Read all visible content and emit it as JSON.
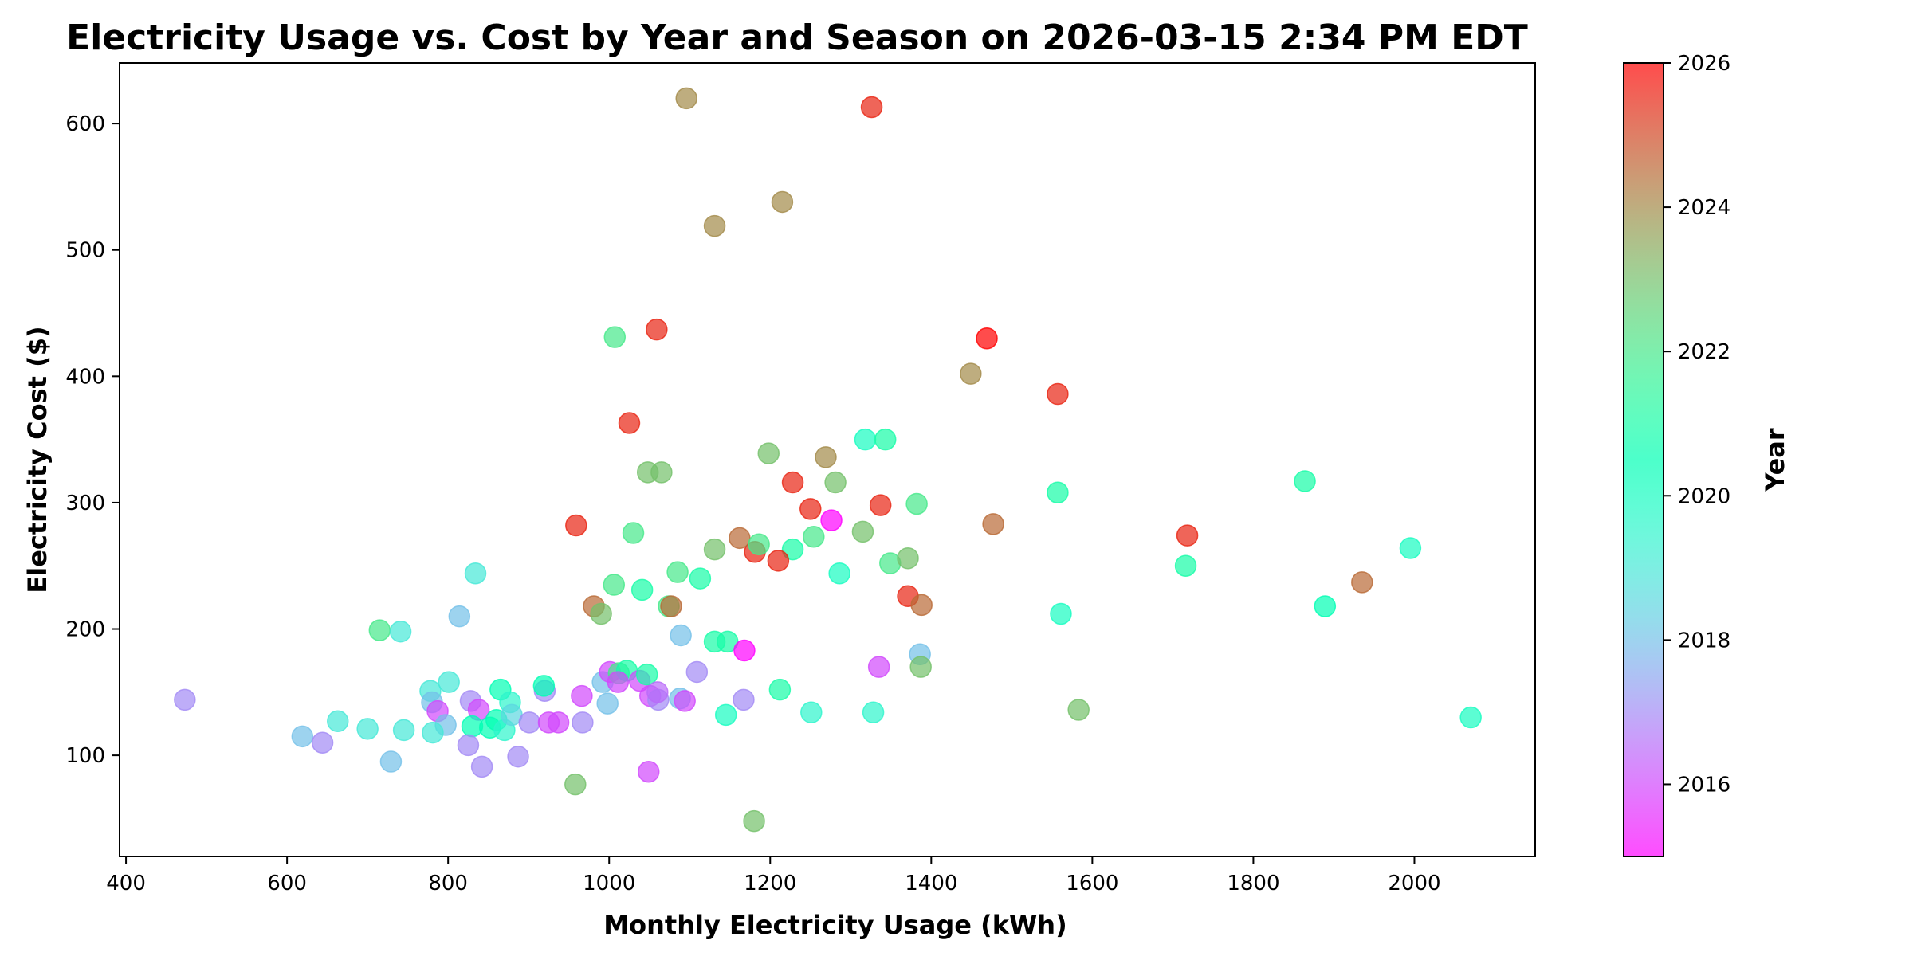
{
  "chart_data": {
    "type": "scatter",
    "title": "Electricity Usage vs. Cost by Year and Season on 2026-03-15 2:34 PM EDT",
    "xlabel": "Monthly Electricity Usage (kWh)",
    "ylabel": "Electricity Cost ($)",
    "xlim": [
      392,
      2150
    ],
    "ylim": [
      20,
      648
    ],
    "xticks": [
      400,
      600,
      800,
      1000,
      1200,
      1400,
      1600,
      1800,
      2000
    ],
    "yticks": [
      100,
      200,
      300,
      400,
      500,
      600
    ],
    "grid": false,
    "colorbar": {
      "label": "Year",
      "colormap": "rainbow",
      "range": [
        2015,
        2026
      ],
      "ticks": [
        2016,
        2018,
        2020,
        2022,
        2024,
        2026
      ]
    },
    "points": [
      {
        "x": 1096,
        "y": 620,
        "year": 2024
      },
      {
        "x": 1326,
        "y": 613,
        "year": 2025.5
      },
      {
        "x": 1215,
        "y": 538,
        "year": 2024
      },
      {
        "x": 1131,
        "y": 519,
        "year": 2024
      },
      {
        "x": 1007,
        "y": 431,
        "year": 2022
      },
      {
        "x": 1059,
        "y": 437,
        "year": 2025.5
      },
      {
        "x": 1469,
        "y": 430,
        "year": 2026
      },
      {
        "x": 1449,
        "y": 402,
        "year": 2024
      },
      {
        "x": 1557,
        "y": 386,
        "year": 2025.5
      },
      {
        "x": 1025,
        "y": 363,
        "year": 2025.5
      },
      {
        "x": 959,
        "y": 282,
        "year": 2025.5
      },
      {
        "x": 1030,
        "y": 276,
        "year": 2022
      },
      {
        "x": 1048,
        "y": 324,
        "year": 2023
      },
      {
        "x": 1065,
        "y": 324,
        "year": 2023
      },
      {
        "x": 1198,
        "y": 339,
        "year": 2023
      },
      {
        "x": 1269,
        "y": 336,
        "year": 2024
      },
      {
        "x": 1228,
        "y": 316,
        "year": 2025.5
      },
      {
        "x": 1281,
        "y": 316,
        "year": 2023
      },
      {
        "x": 1250,
        "y": 295,
        "year": 2025.5
      },
      {
        "x": 1276,
        "y": 286,
        "year": 2015
      },
      {
        "x": 1337,
        "y": 298,
        "year": 2025.5
      },
      {
        "x": 1382,
        "y": 299,
        "year": 2022
      },
      {
        "x": 1318,
        "y": 350,
        "year": 2020
      },
      {
        "x": 1343,
        "y": 350,
        "year": 2021
      },
      {
        "x": 1557,
        "y": 308,
        "year": 2021
      },
      {
        "x": 1477,
        "y": 283,
        "year": 2024.5
      },
      {
        "x": 1718,
        "y": 274,
        "year": 2025.5
      },
      {
        "x": 1716,
        "y": 250,
        "year": 2021
      },
      {
        "x": 1561,
        "y": 212,
        "year": 2020
      },
      {
        "x": 1315,
        "y": 277,
        "year": 2023
      },
      {
        "x": 1254,
        "y": 273,
        "year": 2022
      },
      {
        "x": 1228,
        "y": 263,
        "year": 2021
      },
      {
        "x": 1210,
        "y": 254,
        "year": 2025.5
      },
      {
        "x": 1181,
        "y": 261,
        "year": 2025.5
      },
      {
        "x": 1162,
        "y": 272,
        "year": 2024.5
      },
      {
        "x": 1186,
        "y": 267,
        "year": 2022
      },
      {
        "x": 1131,
        "y": 263,
        "year": 2023
      },
      {
        "x": 1085,
        "y": 245,
        "year": 2022
      },
      {
        "x": 1113,
        "y": 240,
        "year": 2021
      },
      {
        "x": 1006,
        "y": 235,
        "year": 2022
      },
      {
        "x": 1041,
        "y": 231,
        "year": 2021
      },
      {
        "x": 1286,
        "y": 244,
        "year": 2020
      },
      {
        "x": 1349,
        "y": 252,
        "year": 2022
      },
      {
        "x": 1371,
        "y": 256,
        "year": 2023
      },
      {
        "x": 1371,
        "y": 226,
        "year": 2025.5
      },
      {
        "x": 1388,
        "y": 219,
        "year": 2024.5
      },
      {
        "x": 981,
        "y": 218,
        "year": 2024.5
      },
      {
        "x": 990,
        "y": 212,
        "year": 2023
      },
      {
        "x": 1074,
        "y": 218,
        "year": 2022
      },
      {
        "x": 1077,
        "y": 218,
        "year": 2024.5
      },
      {
        "x": 1864,
        "y": 317,
        "year": 2021
      },
      {
        "x": 1995,
        "y": 264,
        "year": 2020
      },
      {
        "x": 1935,
        "y": 237,
        "year": 2024.5
      },
      {
        "x": 1889,
        "y": 218,
        "year": 2020.5
      },
      {
        "x": 2070,
        "y": 130,
        "year": 2020
      },
      {
        "x": 1089,
        "y": 195,
        "year": 2018
      },
      {
        "x": 1131,
        "y": 190,
        "year": 2021
      },
      {
        "x": 1147,
        "y": 190,
        "year": 2021
      },
      {
        "x": 1168,
        "y": 183,
        "year": 2015
      },
      {
        "x": 1335,
        "y": 170,
        "year": 2016
      },
      {
        "x": 1386,
        "y": 180,
        "year": 2018
      },
      {
        "x": 1387,
        "y": 170,
        "year": 2023
      },
      {
        "x": 1109,
        "y": 166,
        "year": 2017
      },
      {
        "x": 1212,
        "y": 152,
        "year": 2021
      },
      {
        "x": 1167,
        "y": 144,
        "year": 2017
      },
      {
        "x": 1145,
        "y": 132,
        "year": 2020
      },
      {
        "x": 1251,
        "y": 134,
        "year": 2019.5
      },
      {
        "x": 1328,
        "y": 134,
        "year": 2019.5
      },
      {
        "x": 1583,
        "y": 136,
        "year": 2023
      },
      {
        "x": 966,
        "y": 147,
        "year": 2016
      },
      {
        "x": 967,
        "y": 126,
        "year": 2017
      },
      {
        "x": 998,
        "y": 141,
        "year": 2018
      },
      {
        "x": 992,
        "y": 158,
        "year": 2018
      },
      {
        "x": 1001,
        "y": 166,
        "year": 2016
      },
      {
        "x": 1012,
        "y": 165,
        "year": 2022
      },
      {
        "x": 1022,
        "y": 167,
        "year": 2021
      },
      {
        "x": 1011,
        "y": 158,
        "year": 2016
      },
      {
        "x": 1038,
        "y": 159,
        "year": 2016
      },
      {
        "x": 1047,
        "y": 164,
        "year": 2021
      },
      {
        "x": 1051,
        "y": 147,
        "year": 2016
      },
      {
        "x": 1061,
        "y": 144,
        "year": 2017
      },
      {
        "x": 1060,
        "y": 150,
        "year": 2016.5
      },
      {
        "x": 1088,
        "y": 145,
        "year": 2018
      },
      {
        "x": 1094,
        "y": 143,
        "year": 2016
      },
      {
        "x": 1049,
        "y": 87,
        "year": 2016
      },
      {
        "x": 958,
        "y": 77,
        "year": 2023
      },
      {
        "x": 1180,
        "y": 48,
        "year": 2023
      },
      {
        "x": 937,
        "y": 126,
        "year": 2016
      },
      {
        "x": 715,
        "y": 199,
        "year": 2022
      },
      {
        "x": 741,
        "y": 198,
        "year": 2019
      },
      {
        "x": 814,
        "y": 210,
        "year": 2018
      },
      {
        "x": 834,
        "y": 244,
        "year": 2019
      },
      {
        "x": 473,
        "y": 144,
        "year": 2017
      },
      {
        "x": 619,
        "y": 115,
        "year": 2018
      },
      {
        "x": 644,
        "y": 110,
        "year": 2017
      },
      {
        "x": 663,
        "y": 127,
        "year": 2019
      },
      {
        "x": 700,
        "y": 121,
        "year": 2019
      },
      {
        "x": 745,
        "y": 120,
        "year": 2019
      },
      {
        "x": 729,
        "y": 95,
        "year": 2018
      },
      {
        "x": 778,
        "y": 151,
        "year": 2019
      },
      {
        "x": 801,
        "y": 158,
        "year": 2019
      },
      {
        "x": 780,
        "y": 142,
        "year": 2018
      },
      {
        "x": 787,
        "y": 135,
        "year": 2016
      },
      {
        "x": 797,
        "y": 124,
        "year": 2018
      },
      {
        "x": 781,
        "y": 118,
        "year": 2019
      },
      {
        "x": 828,
        "y": 143,
        "year": 2017
      },
      {
        "x": 838,
        "y": 136,
        "year": 2016
      },
      {
        "x": 830,
        "y": 123,
        "year": 2020.5
      },
      {
        "x": 825,
        "y": 108,
        "year": 2017
      },
      {
        "x": 842,
        "y": 91,
        "year": 2017
      },
      {
        "x": 865,
        "y": 152,
        "year": 2020.5
      },
      {
        "x": 877,
        "y": 142,
        "year": 2019.5
      },
      {
        "x": 860,
        "y": 128,
        "year": 2020.5
      },
      {
        "x": 852,
        "y": 122,
        "year": 2020.5
      },
      {
        "x": 870,
        "y": 120,
        "year": 2019.5
      },
      {
        "x": 879,
        "y": 132,
        "year": 2018.5
      },
      {
        "x": 887,
        "y": 99,
        "year": 2017
      },
      {
        "x": 901,
        "y": 126,
        "year": 2017
      },
      {
        "x": 920,
        "y": 151,
        "year": 2017
      },
      {
        "x": 919,
        "y": 155,
        "year": 2020.5
      },
      {
        "x": 925,
        "y": 126,
        "year": 2016
      }
    ]
  }
}
